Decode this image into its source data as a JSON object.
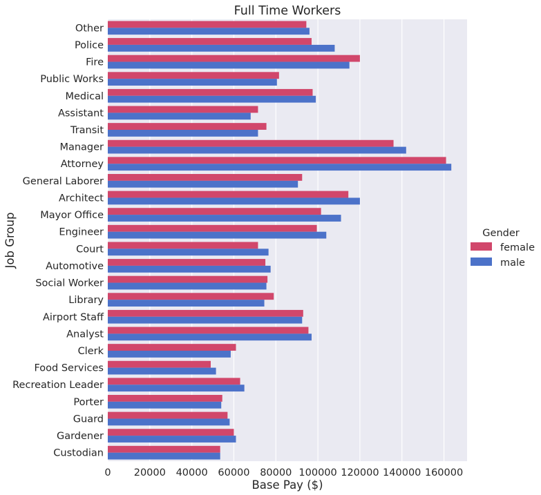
{
  "chart_data": {
    "type": "bar",
    "orientation": "horizontal",
    "title": "Full Time Workers",
    "xlabel": "Base Pay ($)",
    "ylabel": "Job Group",
    "xlim": [
      0,
      171000
    ],
    "xticks": [
      0,
      20000,
      40000,
      60000,
      80000,
      100000,
      120000,
      140000,
      160000
    ],
    "grid": true,
    "legend": {
      "title": "Gender",
      "placement": "right"
    },
    "categories": [
      "Other",
      "Police",
      "Fire",
      "Public Works",
      "Medical",
      "Assistant",
      "Transit",
      "Manager",
      "Attorney",
      "General Laborer",
      "Architect",
      "Mayor Office",
      "Engineer",
      "Court",
      "Automotive",
      "Social Worker",
      "Library",
      "Airport Staff",
      "Analyst",
      "Clerk",
      "Food Services",
      "Recreation Leader",
      "Porter",
      "Guard",
      "Gardener",
      "Custodian"
    ],
    "series": [
      {
        "name": "female",
        "color": "#d1476b",
        "values": [
          94500,
          97000,
          120000,
          81500,
          97500,
          71500,
          75500,
          136000,
          161000,
          92500,
          114500,
          101500,
          99500,
          71500,
          75000,
          76000,
          79000,
          93000,
          95500,
          61000,
          49000,
          63000,
          54500,
          57000,
          60000,
          53500
        ]
      },
      {
        "name": "male",
        "color": "#4c72c9",
        "values": [
          96000,
          108000,
          115000,
          80500,
          99000,
          68000,
          71500,
          142000,
          163500,
          90500,
          120000,
          111000,
          104000,
          76500,
          77500,
          75500,
          74500,
          92500,
          97000,
          58500,
          51500,
          65000,
          54000,
          58000,
          61000,
          53500
        ]
      }
    ]
  }
}
